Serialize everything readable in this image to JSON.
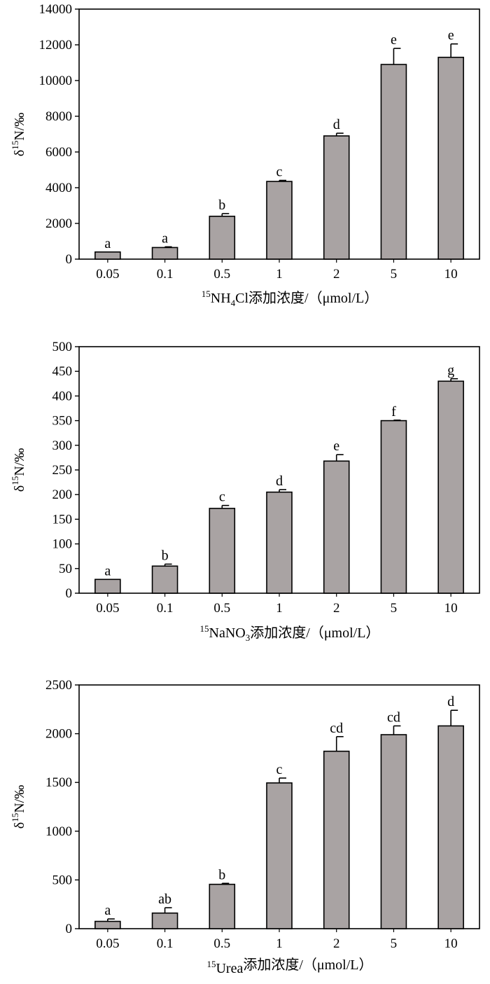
{
  "chart_data": [
    {
      "type": "bar",
      "categories": [
        "0.05",
        "0.1",
        "0.5",
        "1",
        "2",
        "5",
        "10"
      ],
      "values": [
        400,
        650,
        2400,
        4350,
        6900,
        10900,
        11300
      ],
      "errors": [
        0,
        40,
        150,
        60,
        150,
        900,
        750
      ],
      "letters": [
        "a",
        "a",
        "b",
        "c",
        "d",
        "e",
        "e"
      ],
      "ylabel": {
        "prefix": "δ",
        "sup": "15",
        "rest": "N/‰"
      },
      "xlabel": {
        "sup": "15",
        "pre": "NH",
        "sub": "4",
        "post": "Cl添加浓度/（μmol/L）"
      },
      "yticks": [
        "0",
        "2000",
        "4000",
        "6000",
        "8000",
        "10000",
        "12000",
        "14000"
      ],
      "ylim": [
        0,
        14000
      ],
      "colors": {
        "bar": "#a9a3a3",
        "stroke": "#000000"
      }
    },
    {
      "type": "bar",
      "categories": [
        "0.05",
        "0.1",
        "0.5",
        "1",
        "2",
        "5",
        "10"
      ],
      "values": [
        28,
        55,
        172,
        205,
        268,
        350,
        430
      ],
      "errors": [
        0,
        4,
        6,
        5,
        13,
        1,
        5
      ],
      "letters": [
        "a",
        "b",
        "c",
        "d",
        "e",
        "f",
        "g"
      ],
      "ylabel": {
        "prefix": "δ",
        "sup": "15",
        "rest": "N/‰"
      },
      "xlabel": {
        "sup": "15",
        "pre": "NaNO",
        "sub": "3",
        "post": "添加浓度/（μmol/L）"
      },
      "yticks": [
        "0",
        "50",
        "100",
        "150",
        "200",
        "250",
        "300",
        "350",
        "400",
        "450",
        "500"
      ],
      "ylim": [
        0,
        500
      ],
      "colors": {
        "bar": "#a9a3a3",
        "stroke": "#000000"
      }
    },
    {
      "type": "bar",
      "categories": [
        "0.05",
        "0.1",
        "0.5",
        "1",
        "2",
        "5",
        "10"
      ],
      "values": [
        75,
        160,
        455,
        1495,
        1820,
        1990,
        2080
      ],
      "errors": [
        25,
        55,
        10,
        50,
        150,
        90,
        160
      ],
      "letters": [
        "a",
        "ab",
        "b",
        "c",
        "cd",
        "cd",
        "d"
      ],
      "ylabel": {
        "prefix": "δ",
        "sup": "15",
        "rest": "N/‰"
      },
      "xlabel": {
        "sup": "15",
        "pre": "Urea",
        "sub": "",
        "post": "添加浓度/（μmol/L）"
      },
      "yticks": [
        "0",
        "500",
        "1000",
        "1500",
        "2000",
        "2500"
      ],
      "ylim": [
        0,
        2500
      ],
      "colors": {
        "bar": "#a9a3a3",
        "stroke": "#000000"
      }
    }
  ]
}
